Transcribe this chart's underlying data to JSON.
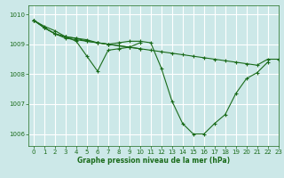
{
  "title": "Graphe pression niveau de la mer (hPa)",
  "bg_color": "#cce8e8",
  "grid_color": "#ffffff",
  "line_color": "#1a6b1a",
  "xlim": [
    -0.5,
    23
  ],
  "ylim": [
    1005.6,
    1010.3
  ],
  "yticks": [
    1006,
    1007,
    1008,
    1009,
    1010
  ],
  "xticks": [
    0,
    1,
    2,
    3,
    4,
    5,
    6,
    7,
    8,
    9,
    10,
    11,
    12,
    13,
    14,
    15,
    16,
    17,
    18,
    19,
    20,
    21,
    22,
    23
  ],
  "series": [
    {
      "x": [
        0,
        1,
        2,
        3,
        4,
        5,
        6,
        7,
        8,
        9,
        10,
        11,
        12,
        13,
        14,
        15,
        16,
        17,
        18,
        19,
        20,
        21,
        22,
        23
      ],
      "y": [
        1009.8,
        1009.6,
        1009.45,
        1009.25,
        1009.2,
        1009.15,
        1009.05,
        1009.0,
        1008.95,
        1008.9,
        1008.85,
        1008.8,
        1008.75,
        1008.7,
        1008.65,
        1008.6,
        1008.55,
        1008.5,
        1008.45,
        1008.4,
        1008.35,
        1008.3,
        1008.5,
        1008.5
      ]
    },
    {
      "x": [
        0,
        1,
        2,
        3,
        4,
        5,
        6,
        7,
        8,
        9,
        10,
        11,
        12,
        13,
        14,
        15,
        16,
        17,
        18,
        19,
        20,
        21,
        22
      ],
      "y": [
        1009.8,
        1009.55,
        1009.35,
        1009.2,
        1009.15,
        1009.1,
        1009.05,
        1009.0,
        1009.05,
        1009.1,
        1009.1,
        1009.05,
        1008.2,
        1007.1,
        1006.35,
        1006.0,
        1006.0,
        1006.35,
        1006.65,
        1007.35,
        1007.85,
        1008.05,
        1008.4
      ]
    },
    {
      "x": [
        0,
        1,
        2,
        3,
        4,
        5,
        6,
        7,
        8,
        9,
        10
      ],
      "y": [
        1009.8,
        1009.55,
        1009.35,
        1009.25,
        1009.1,
        1008.6,
        1008.1,
        1008.8,
        1008.85,
        1008.9,
        1009.05
      ]
    },
    {
      "x": [
        0,
        1,
        2,
        3,
        4,
        5,
        6,
        7,
        8,
        9,
        10
      ],
      "y": [
        1009.8,
        1009.55,
        1009.35,
        1009.25,
        1009.2,
        1009.1,
        1009.05,
        1009.0,
        1008.95,
        1008.9,
        1008.85
      ]
    }
  ]
}
